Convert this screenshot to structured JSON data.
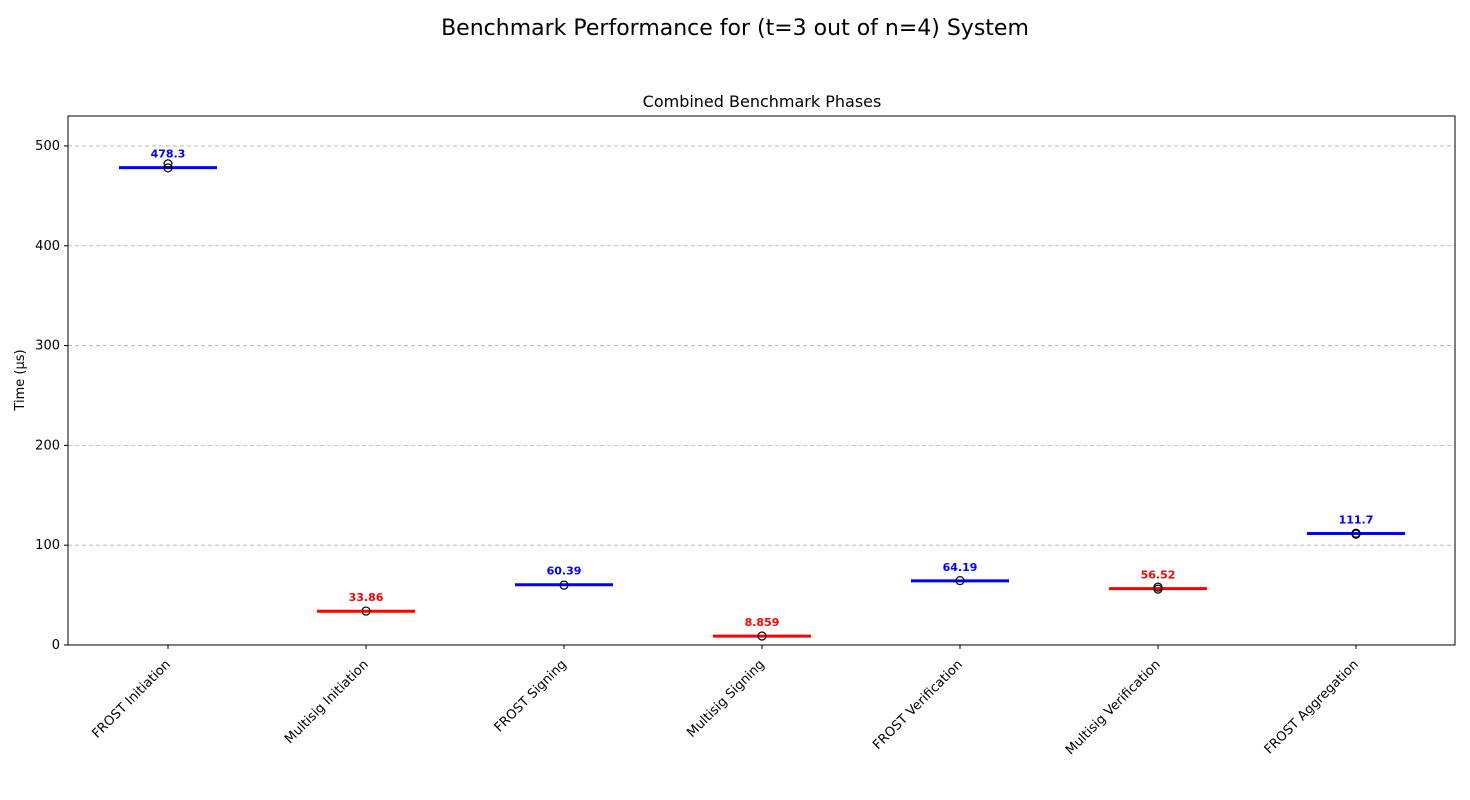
{
  "chart_data": {
    "type": "box",
    "suptitle": "Benchmark Performance for (t=3 out of n=4) System",
    "title": "Combined Benchmark Phases",
    "xlabel": "",
    "ylabel": "Time (µs)",
    "ylim": [
      0,
      530
    ],
    "yticks": [
      0,
      100,
      200,
      300,
      400,
      500
    ],
    "grid": "y-dashed",
    "categories": [
      "FROST Initiation",
      "Multisig Initiation",
      "FROST Signing",
      "Multisig Signing",
      "FROST Verification",
      "Multisig Verification",
      "FROST Aggregation"
    ],
    "medians": [
      478.3,
      33.86,
      60.39,
      8.859,
      64.19,
      56.52,
      111.7
    ],
    "value_labels": [
      "478.3",
      "33.86",
      "60.39",
      "8.859",
      "64.19",
      "56.52",
      "111.7"
    ],
    "outliers": [
      [
        482,
        478
      ],
      [
        34
      ],
      [
        60
      ],
      [
        9
      ],
      [
        64.5
      ],
      [
        58,
        56
      ],
      [
        112,
        111
      ]
    ],
    "colors": [
      "#0000ff",
      "#ff0000",
      "#0000ff",
      "#ff0000",
      "#0000ff",
      "#ff0000",
      "#0000ff"
    ]
  }
}
